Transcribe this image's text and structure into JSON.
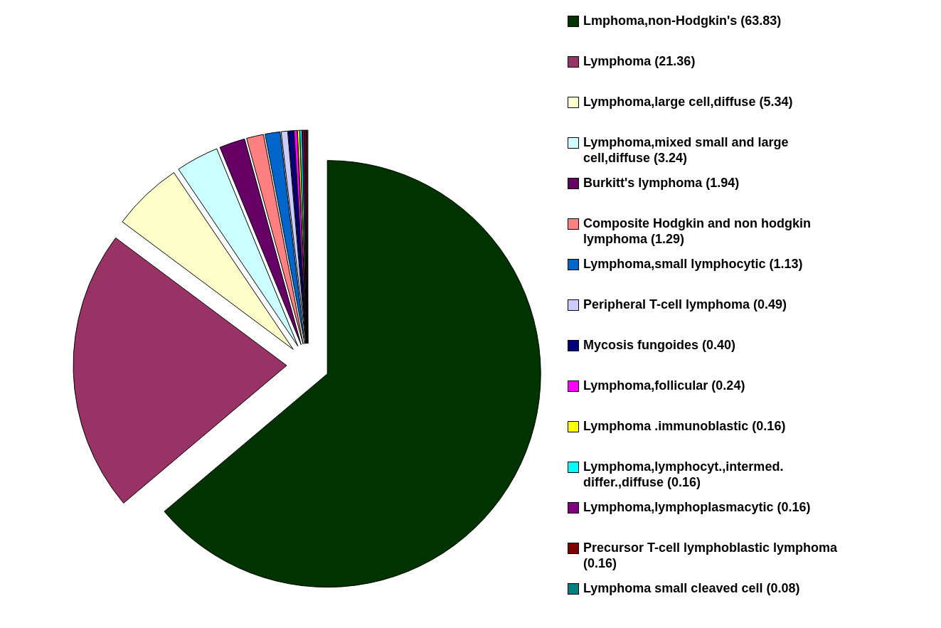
{
  "chart_data": {
    "type": "pie",
    "categories": [
      "Lmphoma,non-Hodgkin's (63.83)",
      "Lymphoma (21.36)",
      "Lymphoma,large cell,diffuse (5.34)",
      "Lymphoma,mixed small and large cell,diffuse (3.24)",
      "Burkitt's lymphoma (1.94)",
      "Composite Hodgkin and non hodgkin lymphoma (1.29)",
      "Lymphoma,small lymphocytic (1.13)",
      "Peripheral T-cell lymphoma (0.49)",
      "Mycosis fungoides (0.40)",
      "Lymphoma,follicular (0.24)",
      "Lymphoma .immunoblastic (0.16)",
      "Lymphoma,lymphocyt.,intermed. differ.,diffuse (0.16)",
      "Lymphoma,lymphoplasmacytic (0.16)",
      "Precursor T-cell lymphoblastic lymphoma (0.16)",
      "Lymphoma small cleaved cell (0.08)"
    ],
    "values": [
      63.83,
      21.36,
      5.34,
      3.24,
      1.94,
      1.29,
      1.13,
      0.49,
      0.4,
      0.24,
      0.16,
      0.16,
      0.16,
      0.16,
      0.08
    ],
    "colors": [
      "#003300",
      "#993366",
      "#ffffcc",
      "#ccffff",
      "#660066",
      "#ff8080",
      "#0066cc",
      "#ccccff",
      "#000080",
      "#ff00ff",
      "#ffff00",
      "#00ffff",
      "#800080",
      "#800000",
      "#008080"
    ],
    "legend": "right"
  }
}
